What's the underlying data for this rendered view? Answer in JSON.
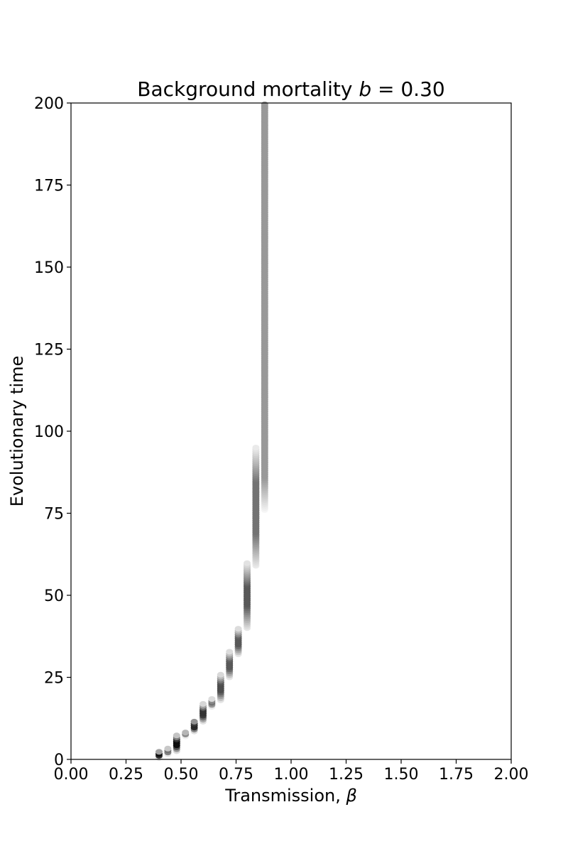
{
  "chart_data": {
    "type": "scatter",
    "title": {
      "prefix": "Background mortality ",
      "symbol": "b",
      "suffix": " = 0.30"
    },
    "xlabel": {
      "prefix": "Transmission, ",
      "symbol": "β"
    },
    "ylabel": "Evolutionary time",
    "xlim": [
      0,
      2
    ],
    "ylim": [
      0,
      200
    ],
    "xticks": [
      "0.00",
      "0.25",
      "0.50",
      "0.75",
      "1.00",
      "1.25",
      "1.50",
      "1.75",
      "2.00"
    ],
    "yticks": [
      "0",
      "25",
      "50",
      "75",
      "100",
      "125",
      "150",
      "175",
      "200"
    ],
    "grid": false,
    "colormap": "greys",
    "trait_bins": [
      {
        "x": 0.4,
        "t_start": 0.5,
        "t_end": 2.5,
        "peak_darkness": 0.95
      },
      {
        "x": 0.44,
        "t_start": 1.5,
        "t_end": 3.5,
        "peak_darkness": 0.55
      },
      {
        "x": 0.48,
        "t_start": 2.5,
        "t_end": 7.5,
        "peak_darkness": 0.95
      },
      {
        "x": 0.52,
        "t_start": 7.0,
        "t_end": 8.5,
        "peak_darkness": 0.45
      },
      {
        "x": 0.56,
        "t_start": 8.5,
        "t_end": 12.0,
        "peak_darkness": 0.85
      },
      {
        "x": 0.6,
        "t_start": 11.5,
        "t_end": 17.0,
        "peak_darkness": 0.8
      },
      {
        "x": 0.64,
        "t_start": 16.0,
        "t_end": 18.5,
        "peak_darkness": 0.55
      },
      {
        "x": 0.68,
        "t_start": 18.0,
        "t_end": 26.0,
        "peak_darkness": 0.7
      },
      {
        "x": 0.72,
        "t_start": 25.0,
        "t_end": 33.0,
        "peak_darkness": 0.65
      },
      {
        "x": 0.76,
        "t_start": 32.0,
        "t_end": 40.0,
        "peak_darkness": 0.65
      },
      {
        "x": 0.8,
        "t_start": 40.0,
        "t_end": 60.0,
        "peak_darkness": 0.65
      },
      {
        "x": 0.84,
        "t_start": 59.0,
        "t_end": 95.0,
        "peak_darkness": 0.55
      },
      {
        "x": 0.88,
        "t_start": 76.0,
        "t_end": 200.0,
        "peak_darkness": 0.4
      }
    ]
  }
}
